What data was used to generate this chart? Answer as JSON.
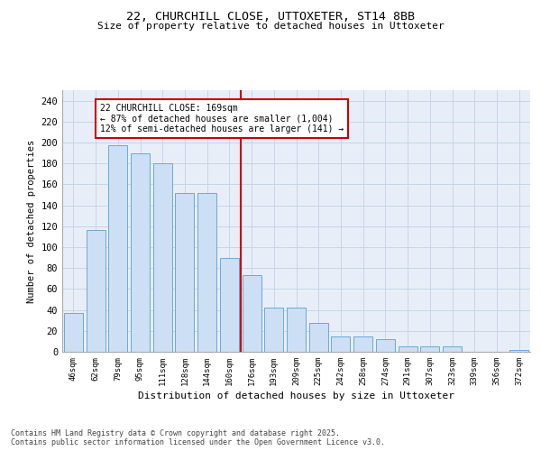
{
  "title": "22, CHURCHILL CLOSE, UTTOXETER, ST14 8BB",
  "subtitle": "Size of property relative to detached houses in Uttoxeter",
  "xlabel": "Distribution of detached houses by size in Uttoxeter",
  "ylabel": "Number of detached properties",
  "categories": [
    "46sqm",
    "62sqm",
    "79sqm",
    "95sqm",
    "111sqm",
    "128sqm",
    "144sqm",
    "160sqm",
    "176sqm",
    "193sqm",
    "209sqm",
    "225sqm",
    "242sqm",
    "258sqm",
    "274sqm",
    "291sqm",
    "307sqm",
    "323sqm",
    "339sqm",
    "356sqm",
    "372sqm"
  ],
  "values": [
    37,
    116,
    197,
    190,
    180,
    152,
    152,
    90,
    73,
    42,
    42,
    28,
    15,
    15,
    12,
    5,
    5,
    5,
    0,
    0,
    2
  ],
  "bar_color": "#ccdff5",
  "bar_edge_color": "#6aaad4",
  "grid_color": "#c5d5e8",
  "bg_color": "#e8eef8",
  "vline_color": "#cc0000",
  "annotation_text": "22 CHURCHILL CLOSE: 169sqm\n← 87% of detached houses are smaller (1,004)\n12% of semi-detached houses are larger (141) →",
  "annotation_box_color": "#cc0000",
  "footnote": "Contains HM Land Registry data © Crown copyright and database right 2025.\nContains public sector information licensed under the Open Government Licence v3.0.",
  "ylim": [
    0,
    250
  ],
  "yticks": [
    0,
    20,
    40,
    60,
    80,
    100,
    120,
    140,
    160,
    180,
    200,
    220,
    240
  ]
}
